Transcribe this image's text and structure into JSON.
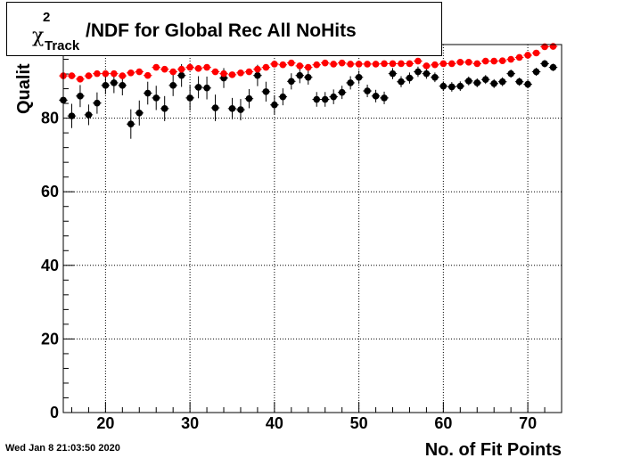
{
  "title": {
    "symbol": "χ",
    "superscript": "2",
    "subscript": "Track",
    "text": "/NDF for Global Rec All NoHits"
  },
  "timestamp": "Wed Jan  8 21:03:50 2020",
  "chart_data": {
    "type": "scatter",
    "title": "χ2 Track /NDF for Global Rec All NoHits",
    "xlabel": "No. of Fit Points",
    "ylabel": "Qualit",
    "xlim": [
      15,
      74
    ],
    "ylim": [
      0,
      100
    ],
    "x_ticks": [
      20,
      30,
      40,
      50,
      60,
      70
    ],
    "y_ticks": [
      0,
      20,
      40,
      60,
      80
    ],
    "grid": true,
    "colors": {
      "black_series": "#000000",
      "red_series": "#ff0000"
    },
    "series": [
      {
        "color": "black",
        "x": [
          15,
          16,
          17,
          18,
          19,
          20,
          21,
          22,
          23,
          24,
          25,
          26,
          27,
          28,
          29,
          30,
          31,
          32,
          33,
          34,
          35,
          36,
          37,
          38,
          39,
          40,
          41,
          42,
          43,
          44,
          45,
          46,
          47,
          48,
          49,
          50,
          51,
          52,
          53,
          54,
          55,
          56,
          57,
          58,
          59,
          60,
          61,
          62,
          63,
          64,
          65,
          66,
          67,
          68,
          69,
          70,
          71,
          72,
          73
        ],
        "y": [
          84.9,
          80.6,
          86.0,
          80.9,
          84.1,
          88.9,
          89.6,
          88.9,
          78.4,
          81.4,
          86.8,
          85.5,
          82.6,
          88.9,
          91.6,
          85.5,
          88.4,
          88.2,
          82.8,
          90.9,
          82.6,
          82.3,
          85.3,
          91.6,
          87.2,
          83.6,
          85.8,
          90.0,
          91.6,
          91.1,
          85.1,
          85.1,
          85.8,
          87.0,
          89.6,
          91.1,
          87.4,
          86.0,
          85.5,
          92.1,
          89.9,
          90.9,
          92.6,
          92.1,
          91.1,
          88.7,
          88.5,
          88.7,
          90.1,
          89.6,
          90.5,
          89.4,
          89.9,
          92.1,
          89.9,
          89.2,
          92.6,
          94.8,
          93.8
        ],
        "err": [
          3.1,
          3.3,
          3.0,
          2.8,
          2.9,
          2.4,
          2.8,
          2.7,
          4.0,
          3.4,
          3.1,
          3.3,
          3.4,
          2.9,
          3.1,
          3.4,
          3.0,
          3.1,
          3.6,
          2.7,
          2.9,
          2.9,
          2.6,
          2.9,
          2.7,
          2.6,
          2.3,
          2.2,
          2.1,
          2.0,
          2.0,
          2.0,
          2.0,
          1.8,
          1.8,
          1.8,
          1.7,
          1.7,
          1.7,
          1.5,
          1.5,
          1.5,
          1.4,
          1.4,
          1.3,
          1.3,
          1.3,
          1.3,
          1.2,
          1.2,
          1.2,
          1.2,
          1.2,
          1.1,
          1.1,
          1.1,
          1.1,
          1.0,
          1.0
        ]
      },
      {
        "color": "red",
        "x": [
          15,
          16,
          17,
          18,
          19,
          20,
          21,
          22,
          23,
          24,
          25,
          26,
          27,
          28,
          29,
          30,
          31,
          32,
          33,
          34,
          35,
          36,
          37,
          38,
          39,
          40,
          41,
          42,
          43,
          44,
          45,
          46,
          47,
          48,
          49,
          50,
          51,
          52,
          53,
          54,
          55,
          56,
          57,
          58,
          59,
          60,
          61,
          62,
          63,
          64,
          65,
          66,
          67,
          68,
          69,
          70,
          71,
          72,
          73
        ],
        "y": [
          91.5,
          91.5,
          90.6,
          91.5,
          92.1,
          92.1,
          92.1,
          91.5,
          92.3,
          92.6,
          91.6,
          93.8,
          93.3,
          92.6,
          93.3,
          93.8,
          93.5,
          93.8,
          92.6,
          92.1,
          91.8,
          92.3,
          92.6,
          93.3,
          93.8,
          94.7,
          94.5,
          95.0,
          94.2,
          93.8,
          94.5,
          95.0,
          94.7,
          95.0,
          94.7,
          94.7,
          94.7,
          94.7,
          94.8,
          94.8,
          94.8,
          94.8,
          95.5,
          94.2,
          94.5,
          94.8,
          94.8,
          95.2,
          95.2,
          94.8,
          95.5,
          95.5,
          95.6,
          96.0,
          96.5,
          97.1,
          97.7,
          99.4,
          99.5
        ],
        "err": [
          0.6,
          0.6,
          0.6,
          0.6,
          0.6,
          0.6,
          0.6,
          0.6,
          0.6,
          0.6,
          0.6,
          0.6,
          0.6,
          0.6,
          0.6,
          0.6,
          0.6,
          0.6,
          0.6,
          0.6,
          0.6,
          0.6,
          0.6,
          0.6,
          0.6,
          0.5,
          0.5,
          0.5,
          0.5,
          0.5,
          0.5,
          0.5,
          0.5,
          0.5,
          0.5,
          0.5,
          0.5,
          0.5,
          0.5,
          0.5,
          0.5,
          0.5,
          0.5,
          0.5,
          0.5,
          0.5,
          0.5,
          0.5,
          0.5,
          0.5,
          0.5,
          0.5,
          0.5,
          0.5,
          0.5,
          0.5,
          0.5,
          0.5,
          0.5
        ]
      }
    ]
  }
}
